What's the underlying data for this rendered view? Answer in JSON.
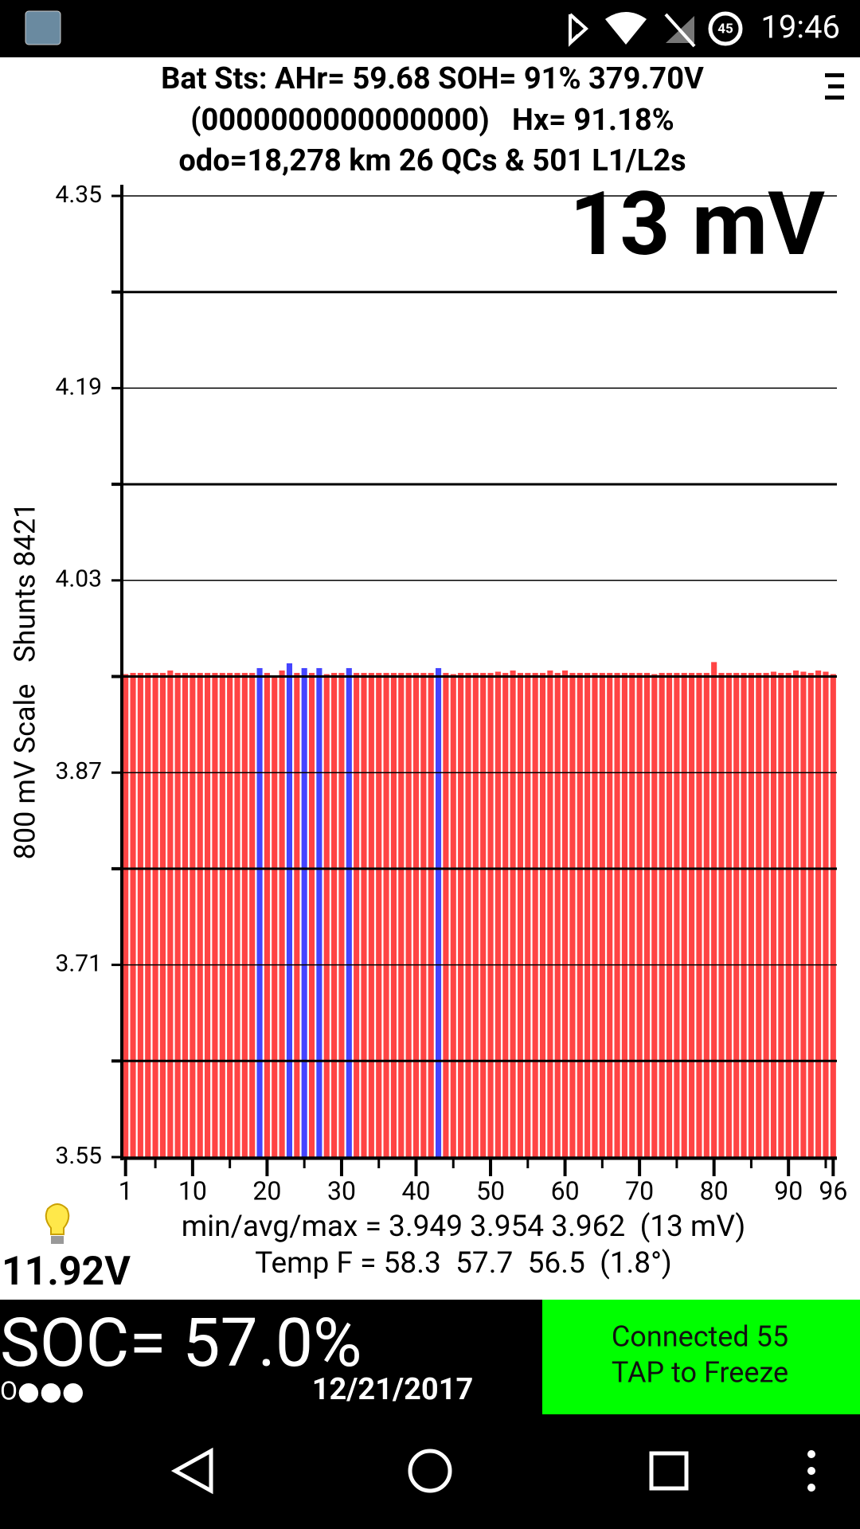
{
  "status_bar": {
    "time": "19:46",
    "battery": "45"
  },
  "header": {
    "lines": [
      "Bat Sts: AHr= 59.68 SOH= 91% 379.70V",
      "(0000000000000000)   Hx= 91.18%",
      "odo=18,278 km 26 QCs & 501 L1/L2s"
    ]
  },
  "chart_data": {
    "type": "bar",
    "big_label": "13 mV",
    "y_label": "800 mV Scale   Shunts 8421",
    "categories": [
      "1",
      null,
      null,
      null,
      null,
      null,
      null,
      null,
      null,
      "10",
      null,
      null,
      null,
      null,
      null,
      null,
      null,
      null,
      null,
      "20",
      null,
      null,
      null,
      null,
      null,
      null,
      null,
      null,
      null,
      "30",
      null,
      null,
      null,
      null,
      null,
      null,
      null,
      null,
      null,
      "40",
      null,
      null,
      null,
      null,
      null,
      null,
      null,
      null,
      null,
      "50",
      null,
      null,
      null,
      null,
      null,
      null,
      null,
      null,
      null,
      "60",
      null,
      null,
      null,
      null,
      null,
      null,
      null,
      null,
      null,
      "70",
      null,
      null,
      null,
      null,
      null,
      null,
      null,
      null,
      null,
      "80",
      null,
      null,
      null,
      null,
      null,
      null,
      null,
      null,
      null,
      "90",
      null,
      null,
      null,
      null,
      null,
      "96"
    ],
    "values": [
      3.952,
      3.953,
      3.953,
      3.953,
      3.953,
      3.953,
      3.955,
      3.953,
      3.953,
      3.953,
      3.953,
      3.953,
      3.953,
      3.953,
      3.953,
      3.953,
      3.953,
      3.953,
      3.957,
      3.953,
      3.949,
      3.955,
      3.961,
      3.953,
      3.957,
      3.953,
      3.957,
      3.952,
      3.953,
      3.953,
      3.957,
      3.953,
      3.953,
      3.953,
      3.953,
      3.953,
      3.953,
      3.953,
      3.953,
      3.953,
      3.953,
      3.953,
      3.957,
      3.953,
      3.952,
      3.953,
      3.953,
      3.953,
      3.953,
      3.953,
      3.954,
      3.953,
      3.955,
      3.953,
      3.953,
      3.953,
      3.953,
      3.955,
      3.953,
      3.955,
      3.953,
      3.953,
      3.953,
      3.953,
      3.953,
      3.953,
      3.953,
      3.953,
      3.953,
      3.953,
      3.953,
      3.952,
      3.953,
      3.953,
      3.953,
      3.953,
      3.953,
      3.953,
      3.953,
      3.962,
      3.953,
      3.953,
      3.953,
      3.953,
      3.953,
      3.953,
      3.953,
      3.954,
      3.953,
      3.953,
      3.955,
      3.954,
      3.953,
      3.955,
      3.954,
      3.952
    ],
    "colors": [
      "#f44",
      "#f44",
      "#f44",
      "#f44",
      "#f44",
      "#f44",
      "#f44",
      "#f44",
      "#f44",
      "#f44",
      "#f44",
      "#f44",
      "#f44",
      "#f44",
      "#f44",
      "#f44",
      "#f44",
      "#f44",
      "#44f",
      "#f44",
      "#f44",
      "#f44",
      "#44f",
      "#f44",
      "#44f",
      "#f44",
      "#44f",
      "#f44",
      "#f44",
      "#f44",
      "#44f",
      "#f44",
      "#f44",
      "#f44",
      "#f44",
      "#f44",
      "#f44",
      "#f44",
      "#f44",
      "#f44",
      "#f44",
      "#f44",
      "#44f",
      "#f44",
      "#f44",
      "#f44",
      "#f44",
      "#f44",
      "#f44",
      "#f44",
      "#f44",
      "#f44",
      "#f44",
      "#f44",
      "#f44",
      "#f44",
      "#f44",
      "#f44",
      "#f44",
      "#f44",
      "#f44",
      "#f44",
      "#f44",
      "#f44",
      "#f44",
      "#f44",
      "#f44",
      "#f44",
      "#f44",
      "#f44",
      "#f44",
      "#f44",
      "#f44",
      "#f44",
      "#f44",
      "#f44",
      "#f44",
      "#f44",
      "#f44",
      "#f44",
      "#f44",
      "#f44",
      "#f44",
      "#f44",
      "#f44",
      "#f44",
      "#f44",
      "#f44",
      "#f44",
      "#f44",
      "#f44",
      "#f44",
      "#f44",
      "#f44",
      "#f44",
      "#f44"
    ],
    "ylim": [
      3.55,
      4.35
    ],
    "yticks": [
      3.55,
      3.71,
      3.87,
      4.03,
      4.19,
      4.35
    ],
    "minor_yticks": [
      3.63,
      3.79,
      3.95,
      4.11,
      4.27
    ],
    "grid": true
  },
  "stats": {
    "line1": "min/avg/max = 3.949 3.954 3.962  (13 mV)",
    "line2": "Temp F = 58.3  57.7  56.5  (1.8°)"
  },
  "aux_voltage": "11.92V",
  "soc": "SOC= 57.0%",
  "dots": "O●●●",
  "date": "12/21/2017",
  "connection": {
    "line1": "Connected 55",
    "line2": "TAP to Freeze"
  }
}
